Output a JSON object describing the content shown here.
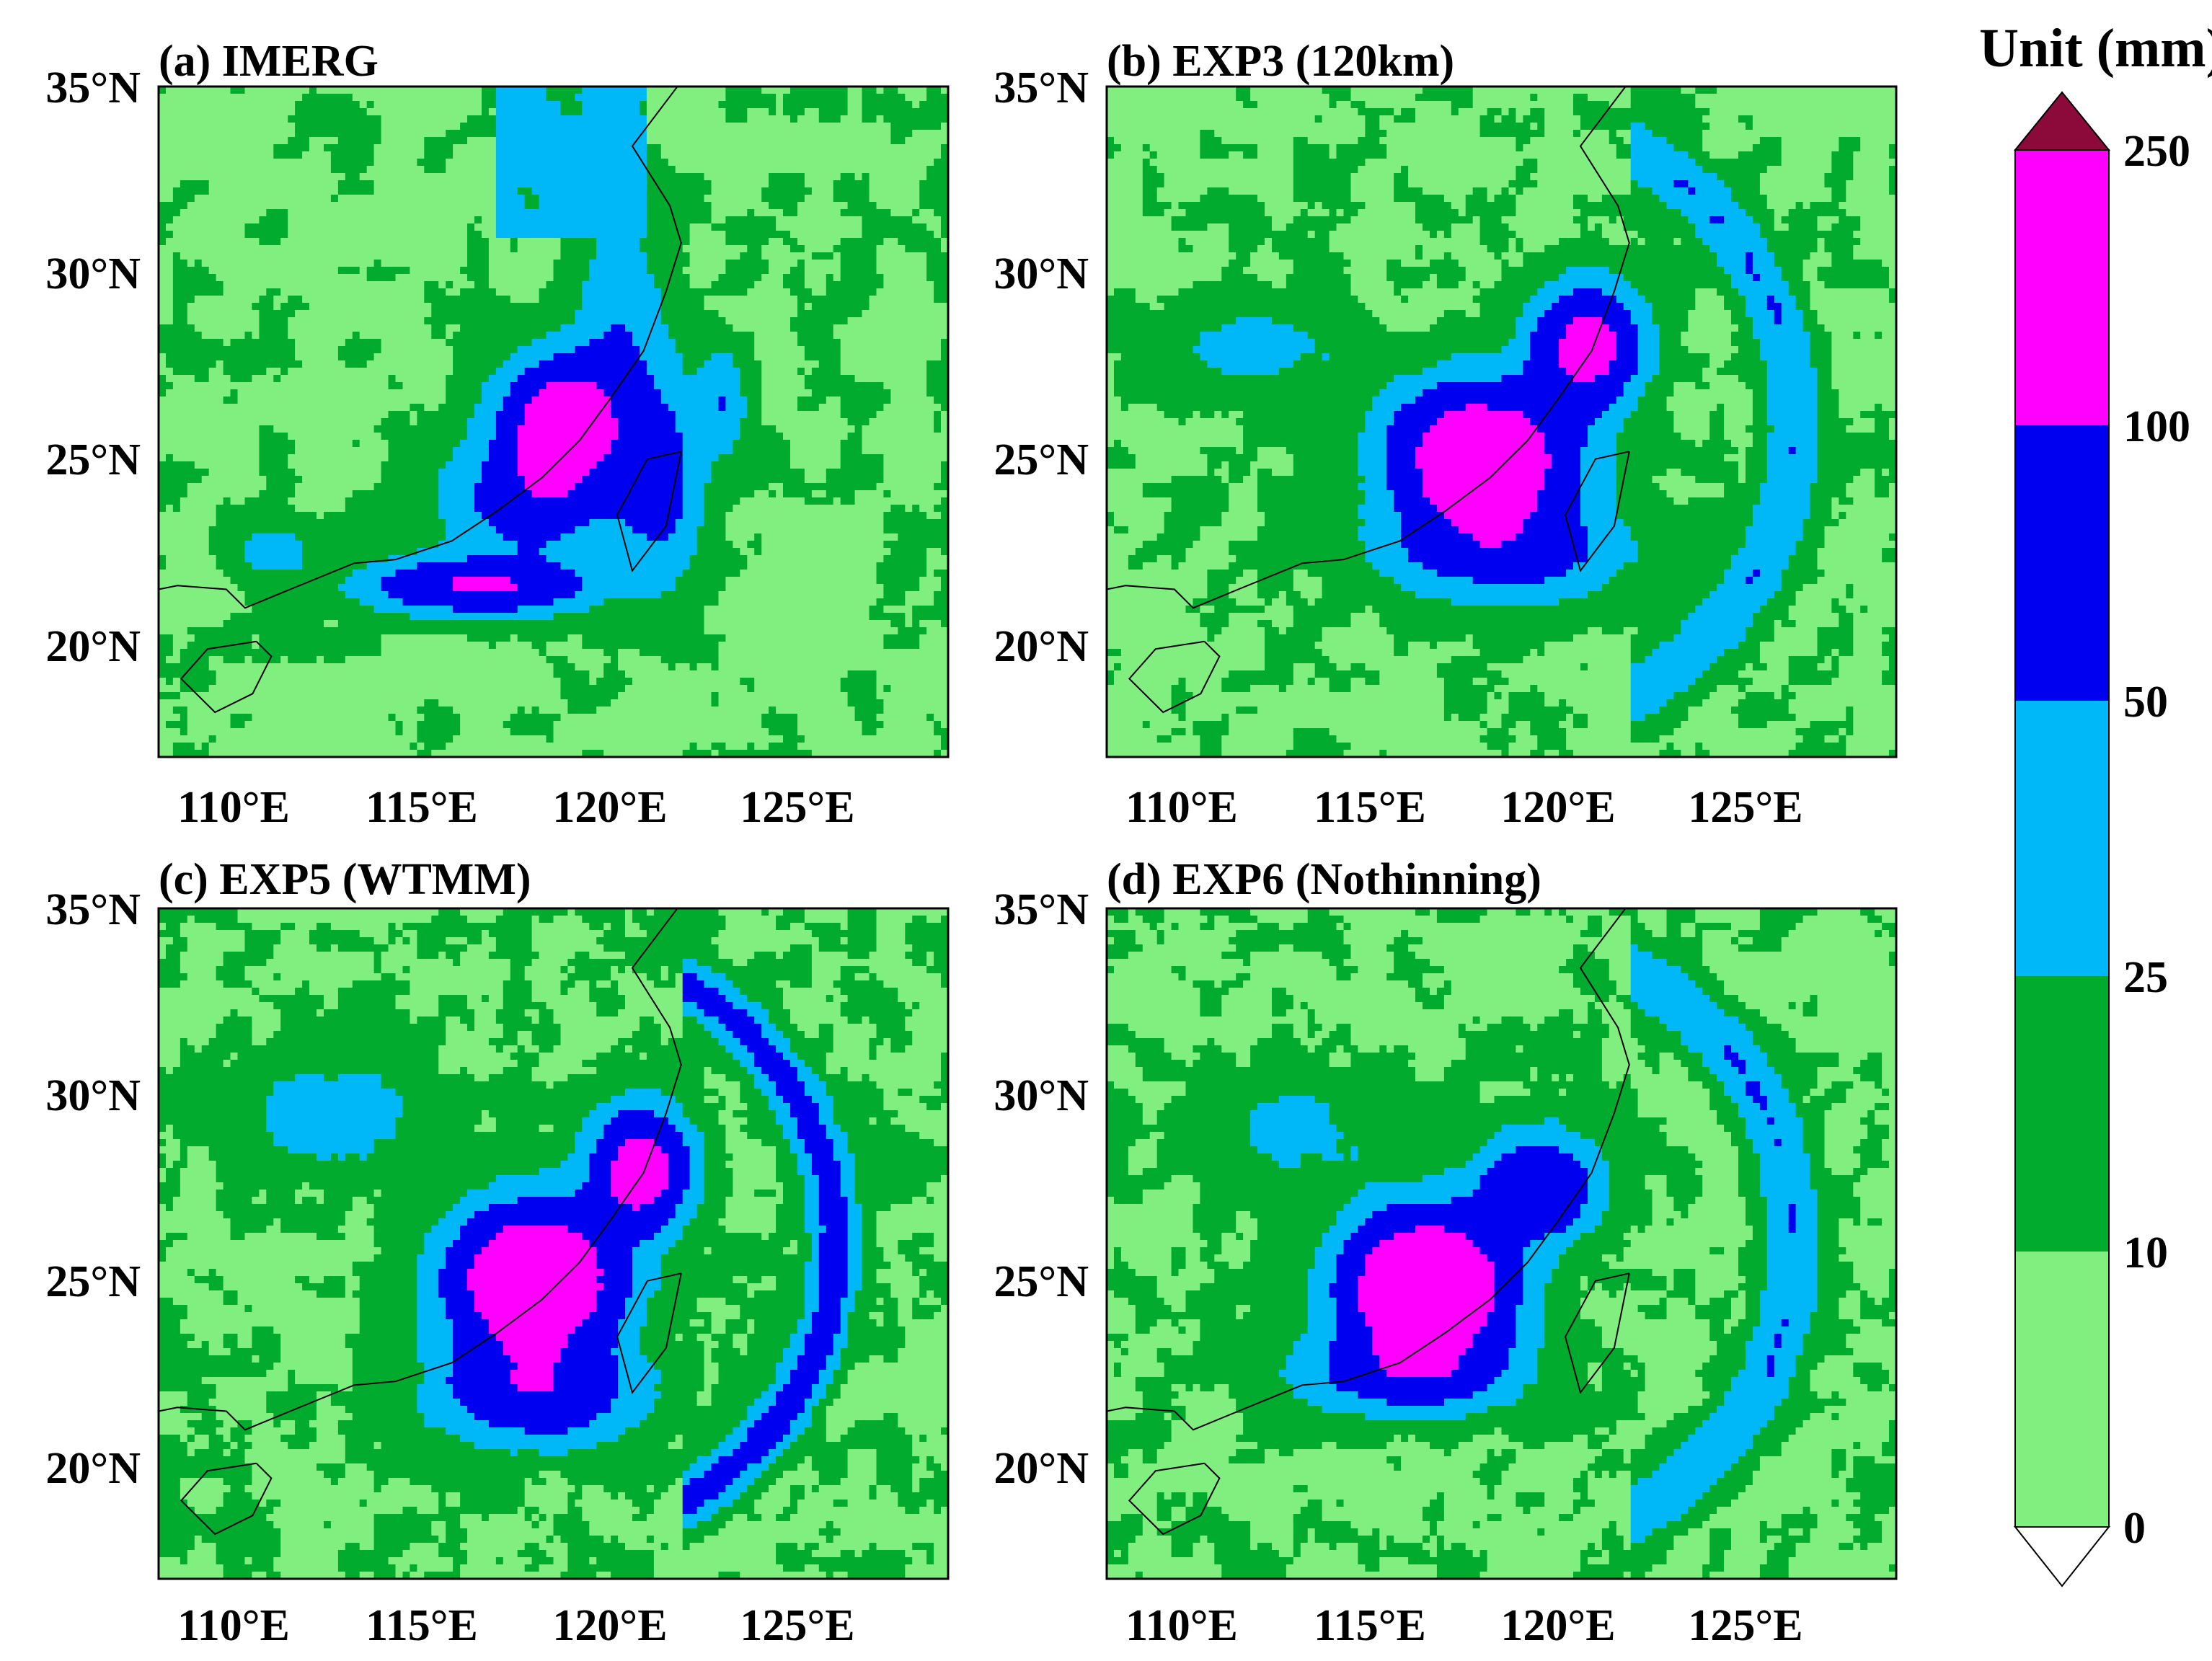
{
  "panels": [
    {
      "title": "(a) IMERG",
      "field": "imerg"
    },
    {
      "title": "(b) EXP3 (120km)",
      "field": "exp3"
    },
    {
      "title": "(c) EXP5 (WTMM)",
      "field": "exp5"
    },
    {
      "title": "(d) EXP6 (Nothinning)",
      "field": "exp6"
    }
  ],
  "axes": {
    "lon_range": [
      108,
      129
    ],
    "lat_range": [
      17,
      35
    ],
    "x_ticks": [
      110,
      115,
      120,
      125
    ],
    "x_tick_labels": [
      "110°E",
      "115°E",
      "120°E",
      "125°E"
    ],
    "y_ticks": [
      20,
      25,
      30,
      35
    ],
    "y_tick_labels": [
      "20°N",
      "25°N",
      "30°N",
      "35°N"
    ]
  },
  "colorbar": {
    "title": "Unit (mm)",
    "levels": [
      0,
      10,
      25,
      50,
      100,
      250
    ],
    "level_labels": [
      "0",
      "10",
      "25",
      "50",
      "100",
      "250"
    ],
    "colors": [
      "#80ef80",
      "#00ab2e",
      "#00b8f8",
      "#0000f0",
      "#ff00ff"
    ],
    "under_color": "#ffffff",
    "over_color": "#8b0a3a",
    "extend": "both"
  },
  "coastline_color": "#000000"
}
